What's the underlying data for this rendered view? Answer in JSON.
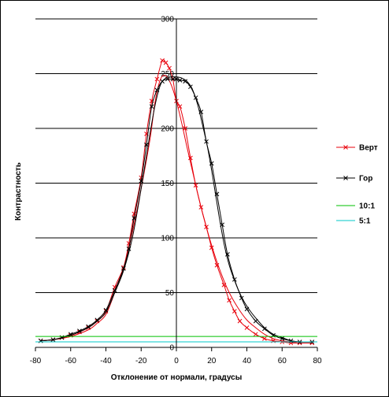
{
  "chart_data": {
    "type": "line",
    "title": "",
    "xlabel": "Отклонение от нормали, градусы",
    "ylabel": "Контрастность",
    "xlim": [
      -80,
      80
    ],
    "ylim": [
      0,
      300
    ],
    "x_ticks": [
      -80,
      -60,
      -40,
      -20,
      0,
      20,
      40,
      60,
      80
    ],
    "y_ticks": [
      0,
      50,
      100,
      150,
      200,
      250,
      300
    ],
    "grid": "horizontal",
    "legend_position": "right",
    "series": [
      {
        "name": "Верт",
        "color": "#e8000b",
        "marker": "x",
        "x": [
          -77,
          -70,
          -65,
          -60,
          -55,
          -50,
          -45,
          -40,
          -35,
          -30,
          -27,
          -24,
          -20,
          -17,
          -14,
          -11,
          -8,
          -6,
          -4,
          -2,
          0,
          2,
          5,
          8,
          11,
          14,
          17,
          20,
          23,
          27,
          30,
          33,
          36,
          40,
          45,
          50,
          55,
          60,
          65,
          70,
          77
        ],
        "values": [
          6,
          7,
          9,
          11,
          14,
          18,
          24,
          33,
          55,
          73,
          95,
          122,
          155,
          195,
          225,
          245,
          262,
          260,
          255,
          245,
          225,
          220,
          200,
          173,
          148,
          128,
          110,
          91,
          75,
          57,
          43,
          33,
          24,
          18,
          12,
          8,
          6,
          5,
          4,
          4,
          4
        ]
      },
      {
        "name": "Верт",
        "color": "#e8000b",
        "marker": "none",
        "x": [
          -77,
          -70,
          -60,
          -50,
          -45,
          -40,
          -35,
          -30,
          -25,
          -20,
          -15,
          -12,
          -9,
          -6,
          -3,
          0,
          3,
          6,
          10,
          14,
          18,
          22,
          26,
          30,
          35,
          40,
          45,
          50,
          55,
          60,
          65,
          70,
          77
        ],
        "values": [
          6,
          7,
          10,
          16,
          22,
          30,
          50,
          72,
          105,
          145,
          190,
          225,
          245,
          248,
          240,
          225,
          205,
          183,
          155,
          128,
          104,
          83,
          65,
          50,
          36,
          25,
          18,
          12,
          8,
          6,
          5,
          4,
          4
        ]
      },
      {
        "name": "Гор",
        "color": "#000000",
        "marker": "x",
        "x": [
          -77,
          -70,
          -65,
          -60,
          -55,
          -50,
          -45,
          -40,
          -35,
          -30,
          -27,
          -24,
          -20,
          -17,
          -14,
          -11,
          -8,
          -5,
          -2,
          0,
          2,
          5,
          8,
          11,
          14,
          17,
          20,
          23,
          26,
          29,
          33,
          37,
          40,
          45,
          50,
          55,
          60,
          65,
          70,
          77
        ],
        "values": [
          6,
          7,
          9,
          12,
          15,
          19,
          25,
          34,
          52,
          72,
          90,
          118,
          152,
          185,
          220,
          235,
          243,
          245,
          245,
          245,
          244,
          243,
          238,
          228,
          215,
          188,
          168,
          140,
          112,
          85,
          62,
          45,
          35,
          24,
          17,
          11,
          8,
          6,
          5,
          5
        ]
      },
      {
        "name": "Гор",
        "color": "#000000",
        "marker": "none",
        "x": [
          -77,
          -70,
          -60,
          -50,
          -45,
          -40,
          -35,
          -30,
          -25,
          -20,
          -15,
          -12,
          -9,
          -6,
          -3,
          0,
          3,
          6,
          9,
          12,
          15,
          18,
          21,
          24,
          27,
          30,
          34,
          38,
          42,
          46,
          50,
          55,
          60,
          65,
          70,
          77
        ],
        "values": [
          6,
          7,
          11,
          18,
          24,
          32,
          50,
          70,
          100,
          145,
          195,
          222,
          240,
          246,
          247,
          247,
          246,
          243,
          236,
          222,
          202,
          180,
          152,
          122,
          95,
          75,
          57,
          43,
          33,
          25,
          18,
          12,
          9,
          6,
          5,
          5
        ]
      },
      {
        "name": "10:1",
        "color": "#00c000",
        "marker": "none",
        "x": [
          -80,
          80
        ],
        "values": [
          10,
          10
        ]
      },
      {
        "name": "5:1",
        "color": "#00c8c8",
        "marker": "none",
        "x": [
          -80,
          80
        ],
        "values": [
          5,
          5
        ]
      }
    ],
    "legend": [
      {
        "name": "Верт",
        "color": "#e8000b",
        "marker": "x"
      },
      {
        "name": "Гор",
        "color": "#000000",
        "marker": "x"
      },
      {
        "name": "10:1",
        "color": "#00c000",
        "marker": "none"
      },
      {
        "name": "5:1",
        "color": "#00c8c8",
        "marker": "none"
      }
    ]
  }
}
